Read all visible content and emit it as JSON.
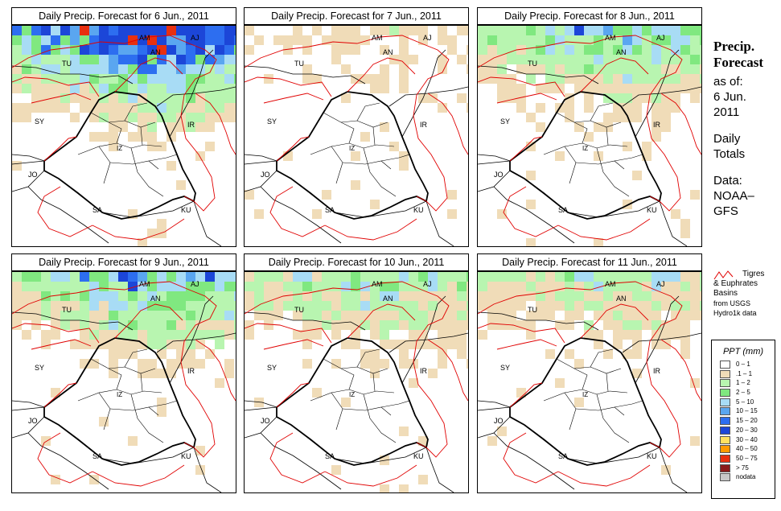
{
  "panels": [
    {
      "title": "Daily Precip. Forecast for  6 Jun., 2011",
      "wet": 1.0
    },
    {
      "title": "Daily Precip. Forecast for  7 Jun., 2011",
      "wet": 0.35
    },
    {
      "title": "Daily Precip. Forecast for  8 Jun., 2011",
      "wet": 0.7
    },
    {
      "title": "Daily Precip. Forecast for  9 Jun., 2011",
      "wet": 0.75
    },
    {
      "title": "Daily Precip. Forecast for  10 Jun., 2011",
      "wet": 0.6
    },
    {
      "title": "Daily Precip. Forecast for  11 Jun., 2011",
      "wet": 0.55
    }
  ],
  "map_labels": [
    "AM",
    "AJ",
    "AN",
    "TU",
    "SY",
    "IR",
    "JO",
    "SA",
    "KU",
    "IZ"
  ],
  "side": {
    "title_line1": "Precip.",
    "title_line2": "Forecast",
    "asof_1": "as of:",
    "asof_2": "6 Jun.",
    "asof_3": "2011",
    "daily_1": "Daily",
    "daily_2": "Totals",
    "data_1": "Data:",
    "data_2": "NOAA–",
    "data_3": "GFS"
  },
  "basin_legend": {
    "line1": "Tigres",
    "line2": "& Euphrates",
    "line3": "Basins",
    "line4": "from USGS",
    "line5": "Hydro1k data"
  },
  "legend": {
    "title": "PPT (mm)",
    "items": [
      {
        "label": "0 – 1",
        "color": "#ffffff"
      },
      {
        "label": ".1 – 1",
        "color": "#f0dcb8"
      },
      {
        "label": "1 – 2",
        "color": "#b8f5b0"
      },
      {
        "label": "2 – 5",
        "color": "#80e880"
      },
      {
        "label": "5 – 10",
        "color": "#a8dcf5"
      },
      {
        "label": "10 – 15",
        "color": "#5aa6f0"
      },
      {
        "label": "15 – 20",
        "color": "#2d6ef0"
      },
      {
        "label": "20 – 30",
        "color": "#1c46d8"
      },
      {
        "label": "30 – 40",
        "color": "#ffe060"
      },
      {
        "label": "40 – 50",
        "color": "#ff9a00"
      },
      {
        "label": "50 – 75",
        "color": "#e83010"
      },
      {
        "label": "> 75",
        "color": "#8b1a1a"
      },
      {
        "label": "nodata",
        "color": "#c8c8c8"
      }
    ]
  },
  "colors": {
    "basin": "#e00000",
    "border": "#000000"
  }
}
